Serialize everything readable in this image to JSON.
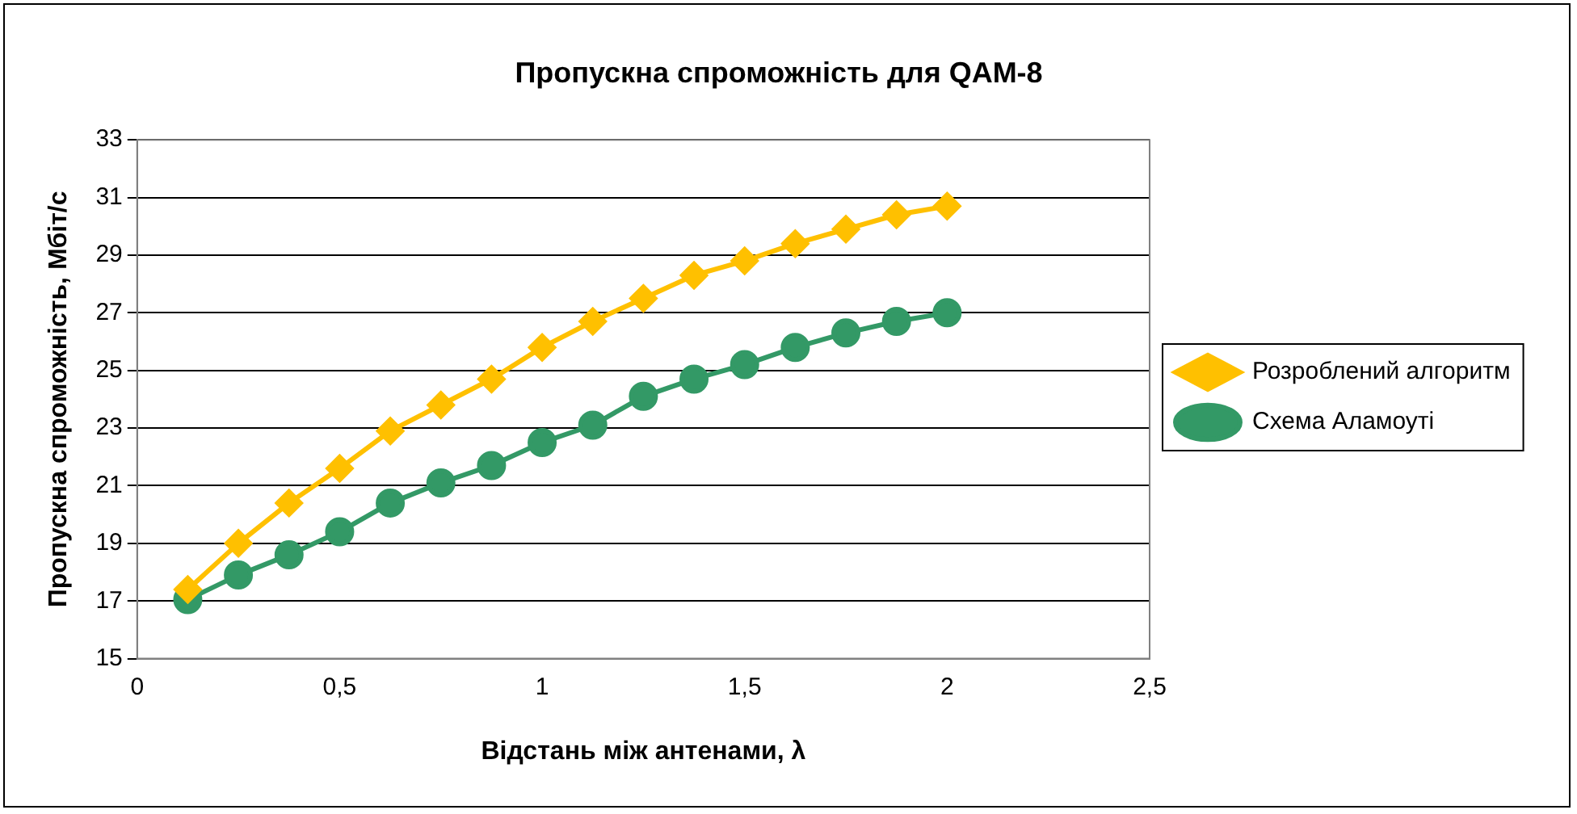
{
  "chart_data": {
    "type": "line",
    "title": "Пропускна спроможність для QAM-8",
    "xlabel": "Відстань між антенами, λ",
    "ylabel": "Пропускна спроможність, Мбіт/с",
    "x": [
      0.125,
      0.25,
      0.375,
      0.5,
      0.625,
      0.75,
      0.875,
      1,
      1.125,
      1.25,
      1.375,
      1.5,
      1.625,
      1.75,
      1.875,
      2
    ],
    "series": [
      {
        "name": "Розроблений алгоритм",
        "color": "#ffc000",
        "marker": "diamond",
        "values": [
          17.4,
          19.0,
          20.4,
          21.6,
          22.9,
          23.8,
          24.7,
          25.8,
          26.7,
          27.5,
          28.3,
          28.8,
          29.4,
          29.9,
          30.4,
          30.7
        ]
      },
      {
        "name": "Схема Аламоуті",
        "color": "#339966",
        "marker": "circle",
        "values": [
          17.05,
          17.9,
          18.6,
          19.4,
          20.4,
          21.1,
          21.7,
          22.5,
          23.1,
          24.1,
          24.7,
          25.2,
          25.8,
          26.3,
          26.7,
          27.0
        ]
      }
    ],
    "xlim": [
      0,
      2.5
    ],
    "xticks": [
      0,
      {
        "value": 0.5,
        "label": "0,5"
      },
      1,
      {
        "value": 1.5,
        "label": "1,5"
      },
      2,
      {
        "value": 2.5,
        "label": "2,5"
      }
    ],
    "ylim": [
      15,
      33
    ],
    "yticks": [
      15,
      17,
      19,
      21,
      23,
      25,
      27,
      29,
      31,
      33
    ],
    "grid": "y",
    "legend": "right"
  }
}
